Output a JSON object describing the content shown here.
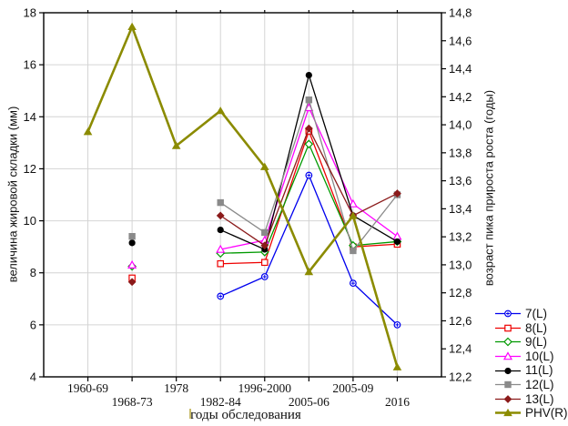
{
  "chart_data": {
    "type": "line",
    "title": "",
    "x_axis": {
      "label": "годы обследования",
      "categories": [
        "1960-69",
        "1968-73",
        "1978",
        "1982-84",
        "1996-2000",
        "2005-06",
        "2005-09",
        "2016"
      ]
    },
    "y_left": {
      "label": "величина жировой складки (мм)",
      "min": 4,
      "max": 18,
      "tick_step": 2,
      "tick_labels": [
        "4",
        "6",
        "8",
        "10",
        "12",
        "14",
        "16",
        "18"
      ]
    },
    "y_right": {
      "label": "возраст пика прироста роста (годы)",
      "min": 12.2,
      "max": 14.8,
      "tick_step": 0.2,
      "tick_labels": [
        "12,2",
        "12,4",
        "12,6",
        "12,8",
        "13,0",
        "13,2",
        "13,4",
        "13,6",
        "13,8",
        "14,0",
        "14,2",
        "14,4",
        "14,6",
        "14,8"
      ]
    },
    "grid": true,
    "legend_position": "right",
    "colors": {
      "grid": "#d4d4d4",
      "axis": "#000000",
      "background": "#ffffff"
    },
    "series": [
      {
        "name": "7(L)",
        "axis": "left",
        "color": "#0000ee",
        "marker": "circle-open",
        "values": [
          null,
          null,
          null,
          7.1,
          7.85,
          11.75,
          7.6,
          6.0
        ]
      },
      {
        "name": "8(L)",
        "axis": "left",
        "color": "#ee0000",
        "marker": "square-open",
        "values": [
          null,
          7.8,
          null,
          8.35,
          8.4,
          13.45,
          9.0,
          9.1
        ]
      },
      {
        "name": "9(L)",
        "axis": "left",
        "color": "#009900",
        "marker": "diamond-open",
        "values": [
          null,
          8.25,
          null,
          8.75,
          8.8,
          12.95,
          9.05,
          9.2
        ]
      },
      {
        "name": "10(L)",
        "axis": "left",
        "color": "#ff00ff",
        "marker": "triangle-open",
        "values": [
          null,
          8.3,
          null,
          8.9,
          9.25,
          14.35,
          10.65,
          9.4
        ]
      },
      {
        "name": "11(L)",
        "axis": "left",
        "color": "#000000",
        "marker": "circle-filled",
        "values": [
          null,
          9.15,
          null,
          9.65,
          8.9,
          15.6,
          10.2,
          9.2
        ]
      },
      {
        "name": "12(L)",
        "axis": "left",
        "color": "#8a8a8a",
        "marker": "square-filled",
        "values": [
          null,
          9.4,
          null,
          10.7,
          9.55,
          14.65,
          8.85,
          11.0
        ]
      },
      {
        "name": "13(L)",
        "axis": "left",
        "color": "#8b1a1a",
        "marker": "diamond-filled",
        "values": [
          null,
          7.65,
          null,
          10.2,
          9.05,
          13.55,
          10.2,
          11.05
        ]
      },
      {
        "name": "PHV(R)",
        "axis": "right",
        "color": "#8b8b00",
        "marker": "triangle-filled",
        "line_width": 2.6,
        "values": [
          13.95,
          14.7,
          13.85,
          14.1,
          13.7,
          12.95,
          13.35,
          12.27
        ]
      }
    ]
  }
}
